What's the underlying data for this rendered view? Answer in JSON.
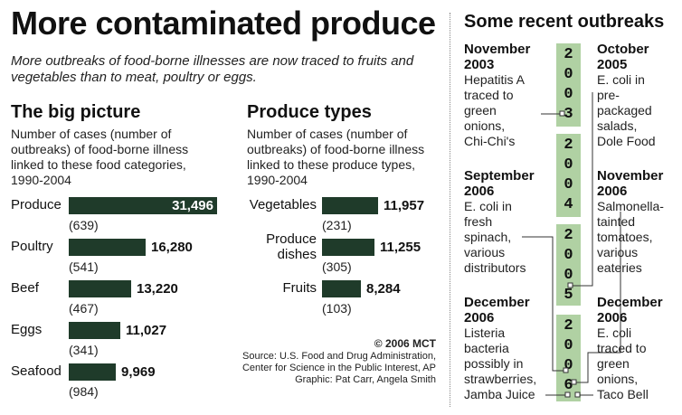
{
  "header": {
    "title": "More contaminated produce",
    "subtitle": "More outbreaks of food-borne illnesses are now traced to fruits and vegetables than to meat, poultry or eggs."
  },
  "big_picture": {
    "title": "The big picture",
    "description": "Number of cases (number of outbreaks) of food-borne illness linked to these food categories, 1990-2004"
  },
  "produce_types": {
    "title": "Produce types",
    "description": "Number of cases (number of outbreaks) of food-borne illness linked to these produce types, 1990-2004"
  },
  "chart_data": [
    {
      "type": "bar",
      "orientation": "horizontal",
      "title": "The big picture",
      "categories": [
        "Produce",
        "Poultry",
        "Beef",
        "Eggs",
        "Seafood"
      ],
      "values": [
        31496,
        16280,
        13220,
        11027,
        9969
      ],
      "value_labels": [
        "31,496",
        "16,280",
        "13,220",
        "11,027",
        "9,969"
      ],
      "outbreaks": [
        "(639)",
        "(541)",
        "(467)",
        "(341)",
        "(984)"
      ],
      "xlim": [
        0,
        31496
      ]
    },
    {
      "type": "bar",
      "orientation": "horizontal",
      "title": "Produce types",
      "categories": [
        "Vegetables",
        "Produce dishes",
        "Fruits"
      ],
      "values": [
        11957,
        11255,
        8284
      ],
      "value_labels": [
        "11,957",
        "11,255",
        "8,284"
      ],
      "outbreaks": [
        "(231)",
        "(305)",
        "(103)"
      ],
      "xlim": [
        0,
        11957
      ]
    }
  ],
  "outbreaks": {
    "title": "Some recent outbreaks",
    "timeline_years": [
      "2003",
      "2004",
      "2005",
      "2006"
    ],
    "left": [
      {
        "date": "November 2003",
        "text": "Hepatitis A traced to green onions, Chi-Chi's"
      },
      {
        "date": "September 2006",
        "text": "E. coli in fresh spinach, various distributors"
      },
      {
        "date": "December 2006",
        "text": "Listeria bacteria possibly in strawberries, Jamba Juice"
      }
    ],
    "right": [
      {
        "date": "October 2005",
        "text": "E. coli in pre-packaged salads, Dole Food"
      },
      {
        "date": "November 2006",
        "text": "Salmonella-tainted tomatoes, various eateries"
      },
      {
        "date": "December 2006",
        "text": "E. coli traced to green onions, Taco Bell"
      }
    ]
  },
  "credits": {
    "copyright": "© 2006 MCT",
    "source": "Source: U.S. Food and Drug Administration, Center for Science in the Public Interest, AP",
    "graphic": "Graphic: Pat Carr, Angela Smith"
  },
  "colors": {
    "bar": "#1f3b2a",
    "timeline": "#b0d1a3"
  }
}
